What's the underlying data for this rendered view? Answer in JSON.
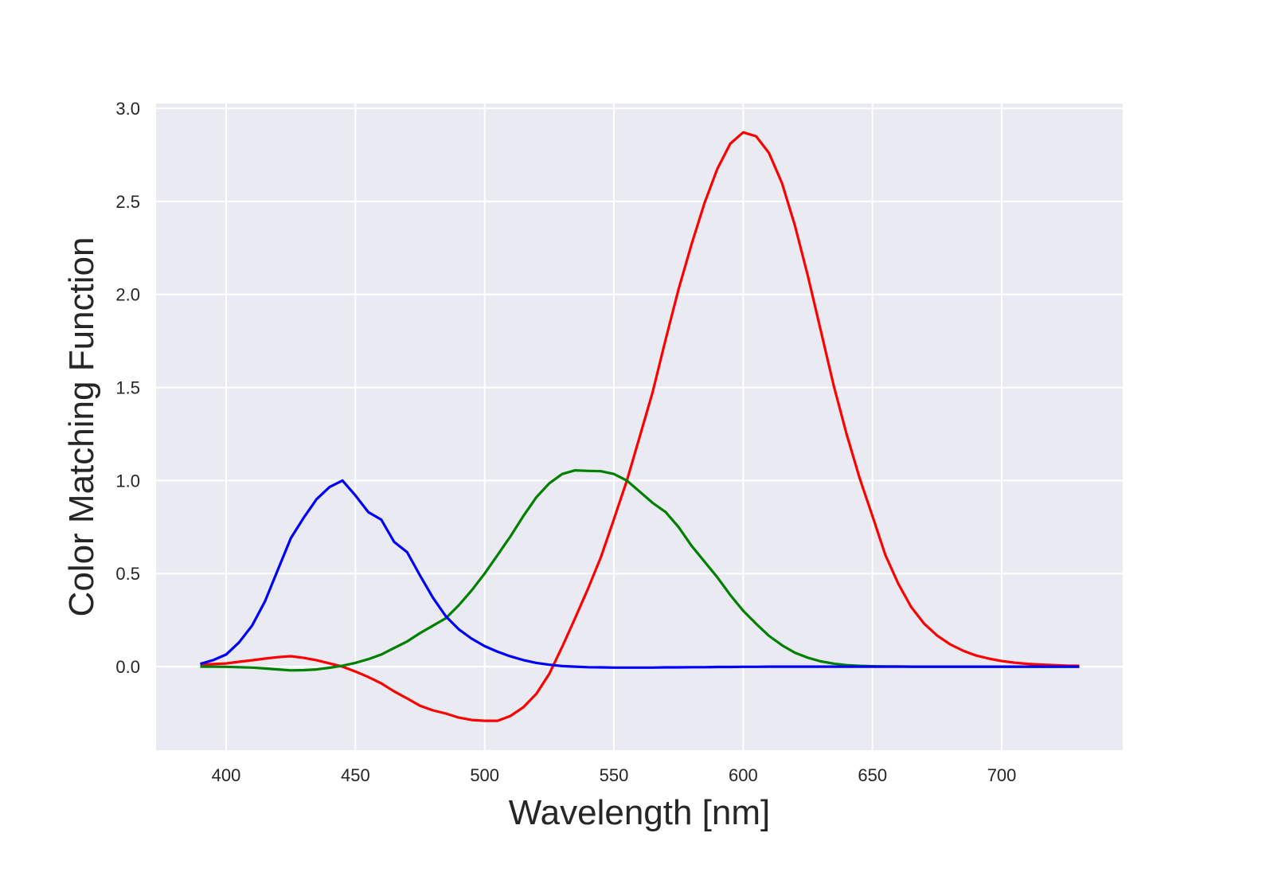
{
  "chart_data": {
    "type": "line",
    "title": "",
    "xlabel": "Wavelength [nm]",
    "ylabel": "Color Matching Function",
    "xlim": [
      372.9,
      746.8
    ],
    "ylim": [
      -0.449,
      3.026
    ],
    "xticks": [
      "400",
      "450",
      "500",
      "550",
      "600",
      "650",
      "700"
    ],
    "yticks": [
      "0.0",
      "0.5",
      "1.0",
      "1.5",
      "2.0",
      "2.5",
      "3.0"
    ],
    "grid": true,
    "background": "#eaeaf2",
    "grid_color": "#ffffff",
    "x": [
      390,
      395,
      400,
      405,
      410,
      415,
      420,
      425,
      430,
      435,
      440,
      445,
      450,
      455,
      460,
      465,
      470,
      475,
      480,
      485,
      490,
      495,
      500,
      505,
      510,
      515,
      520,
      525,
      530,
      535,
      540,
      545,
      550,
      555,
      560,
      565,
      570,
      575,
      580,
      585,
      590,
      595,
      600,
      605,
      610,
      615,
      620,
      625,
      630,
      635,
      640,
      645,
      650,
      655,
      660,
      665,
      670,
      675,
      680,
      685,
      690,
      695,
      700,
      705,
      710,
      715,
      720,
      725,
      730
    ],
    "series": [
      {
        "color": "#ff0000",
        "values": [
          0.01,
          0.014,
          0.017,
          0.026,
          0.034,
          0.043,
          0.051,
          0.056,
          0.047,
          0.034,
          0.017,
          0.0,
          -0.026,
          -0.056,
          -0.09,
          -0.133,
          -0.171,
          -0.21,
          -0.235,
          -0.252,
          -0.274,
          -0.287,
          -0.291,
          -0.291,
          -0.265,
          -0.218,
          -0.146,
          -0.039,
          0.107,
          0.261,
          0.419,
          0.59,
          0.792,
          1.0,
          1.237,
          1.476,
          1.759,
          2.028,
          2.268,
          2.49,
          2.675,
          2.81,
          2.871,
          2.85,
          2.76,
          2.598,
          2.371,
          2.101,
          1.806,
          1.511,
          1.25,
          1.014,
          0.809,
          0.6,
          0.445,
          0.32,
          0.231,
          0.167,
          0.12,
          0.086,
          0.06,
          0.043,
          0.03,
          0.021,
          0.015,
          0.011,
          0.008,
          0.005,
          0.004
        ]
      },
      {
        "color": "#008000",
        "values": [
          0.0,
          0.0,
          -0.001,
          -0.003,
          -0.005,
          -0.01,
          -0.015,
          -0.02,
          -0.019,
          -0.015,
          -0.006,
          0.005,
          0.02,
          0.04,
          0.065,
          0.1,
          0.135,
          0.18,
          0.22,
          0.26,
          0.33,
          0.41,
          0.5,
          0.6,
          0.7,
          0.81,
          0.91,
          0.985,
          1.035,
          1.055,
          1.052,
          1.05,
          1.035,
          1.0,
          0.94,
          0.88,
          0.83,
          0.75,
          0.65,
          0.565,
          0.48,
          0.385,
          0.3,
          0.23,
          0.165,
          0.115,
          0.075,
          0.048,
          0.028,
          0.016,
          0.008,
          0.004,
          0.002,
          0.001,
          0.001,
          0.0,
          0.0,
          0.0,
          0.0,
          0.0,
          0.0,
          0.0,
          0.0,
          0.0,
          0.0,
          0.0,
          0.0,
          0.0,
          0.0
        ]
      },
      {
        "color": "#0000ff",
        "values": [
          0.015,
          0.035,
          0.065,
          0.13,
          0.22,
          0.35,
          0.52,
          0.69,
          0.8,
          0.9,
          0.965,
          1.0,
          0.92,
          0.83,
          0.79,
          0.67,
          0.615,
          0.49,
          0.37,
          0.27,
          0.2,
          0.15,
          0.11,
          0.08,
          0.055,
          0.035,
          0.02,
          0.01,
          0.003,
          0.0,
          -0.003,
          -0.004,
          -0.005,
          -0.005,
          -0.005,
          -0.005,
          -0.004,
          -0.004,
          -0.003,
          -0.003,
          -0.002,
          -0.002,
          -0.001,
          -0.001,
          0.0,
          0.0,
          0.0,
          0.0,
          0.0,
          0.0,
          0.0,
          0.0,
          0.0,
          0.0,
          0.0,
          0.0,
          0.0,
          0.0,
          0.0,
          0.0,
          0.0,
          0.0,
          0.0,
          0.0,
          0.0,
          0.0,
          0.0,
          0.0,
          0.0
        ]
      }
    ]
  }
}
